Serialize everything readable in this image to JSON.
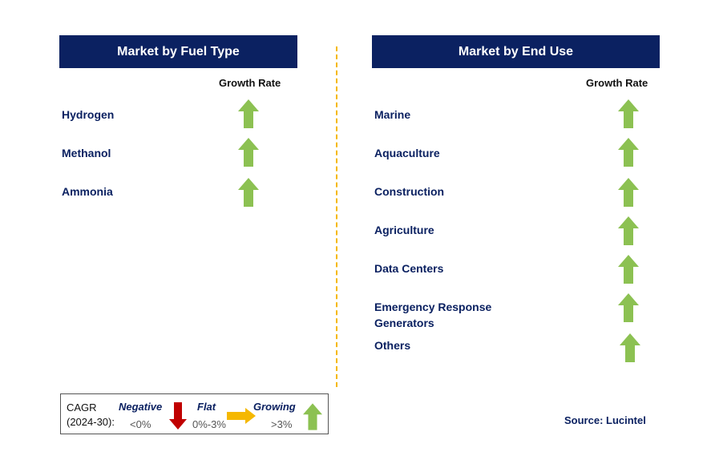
{
  "left_panel": {
    "title": "Market by Fuel Type",
    "column_label": "Growth Rate",
    "items": [
      {
        "label": "Hydrogen",
        "trend": "growing"
      },
      {
        "label": "Methanol",
        "trend": "growing"
      },
      {
        "label": "Ammonia",
        "trend": "growing"
      }
    ]
  },
  "right_panel": {
    "title": "Market by End Use",
    "column_label": "Growth Rate",
    "items": [
      {
        "label": "Marine",
        "trend": "growing"
      },
      {
        "label": "Aquaculture",
        "trend": "growing"
      },
      {
        "label": "Construction",
        "trend": "growing"
      },
      {
        "label": "Agriculture",
        "trend": "growing"
      },
      {
        "label": "Data Centers",
        "trend": "growing"
      },
      {
        "label": "Emergency Response Generators",
        "trend": "growing"
      },
      {
        "label": "Others",
        "trend": "growing"
      }
    ]
  },
  "legend": {
    "cagr_label": "CAGR",
    "period": "(2024-30):",
    "negative": {
      "label": "Negative",
      "range": "<0%"
    },
    "flat": {
      "label": "Flat",
      "range": "0%-3%"
    },
    "growing": {
      "label": "Growing",
      "range": ">3%"
    }
  },
  "source": "Source: Lucintel",
  "colors": {
    "header_bg": "#0b2161",
    "text_navy": "#0b2161",
    "arrow_green": "#8cc152",
    "arrow_red": "#c00000",
    "arrow_yellow": "#f5b800",
    "divider": "#f5b800"
  }
}
